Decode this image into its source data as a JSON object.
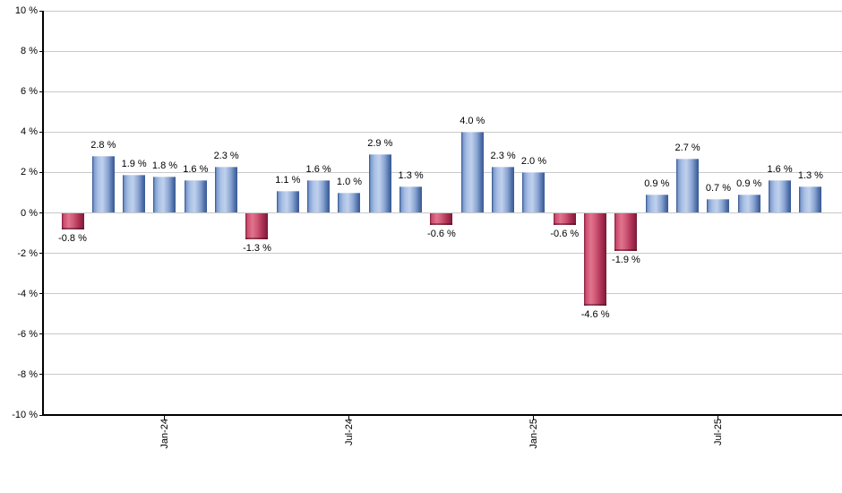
{
  "chart_data": {
    "type": "bar",
    "title": "",
    "xlabel": "",
    "ylabel": "",
    "ylim": [
      -10,
      10
    ],
    "y_step": 2,
    "grid": "horizontal-only",
    "legend_position": "none",
    "values": [
      -0.8,
      2.8,
      1.9,
      1.8,
      1.6,
      2.3,
      -1.3,
      1.1,
      1.6,
      1.0,
      2.9,
      1.3,
      -0.6,
      4.0,
      2.3,
      2.0,
      -0.6,
      -4.6,
      -1.9,
      0.9,
      2.7,
      0.7,
      0.9,
      1.6,
      1.3
    ],
    "bar_value_labels": [
      "-0.8 %",
      "2.8 %",
      "1.9 %",
      "1.8 %",
      "1.6 %",
      "2.3 %",
      "-1.3 %",
      "1.1 %",
      "1.6 %",
      "1.0 %",
      "2.9 %",
      "1.3 %",
      "-0.6 %",
      "4.0 %",
      "2.3 %",
      "2.0 %",
      "-0.6 %",
      "-4.6 %",
      "-1.9 %",
      "0.9 %",
      "2.7 %",
      "0.7 %",
      "0.9 %",
      "1.6 %",
      "1.3 %"
    ],
    "y_ticks": [
      {
        "value": 10,
        "label": "10 %"
      },
      {
        "value": 8,
        "label": "8 %"
      },
      {
        "value": 6,
        "label": "6 %"
      },
      {
        "value": 4,
        "label": "4 %"
      },
      {
        "value": 2,
        "label": "2 %"
      },
      {
        "value": 0,
        "label": "0 %"
      },
      {
        "value": -2,
        "label": "-2 %"
      },
      {
        "value": -4,
        "label": "-4 %"
      },
      {
        "value": -6,
        "label": "-6 %"
      },
      {
        "value": -8,
        "label": "-8 %"
      },
      {
        "value": -10,
        "label": "-10 %"
      }
    ],
    "x_ticks": [
      {
        "bar_index": 3,
        "label": "Jan-24"
      },
      {
        "bar_index": 9,
        "label": "Jul-24"
      },
      {
        "bar_index": 15,
        "label": "Jan-25"
      },
      {
        "bar_index": 21,
        "label": "Jul-25"
      }
    ],
    "colors": {
      "positive_bar": "#6c8fc6",
      "negative_bar": "#c43a5e",
      "gridline": "#c9c9c9",
      "axis": "#000000",
      "label_text": "#000000",
      "background": "#ffffff"
    }
  }
}
